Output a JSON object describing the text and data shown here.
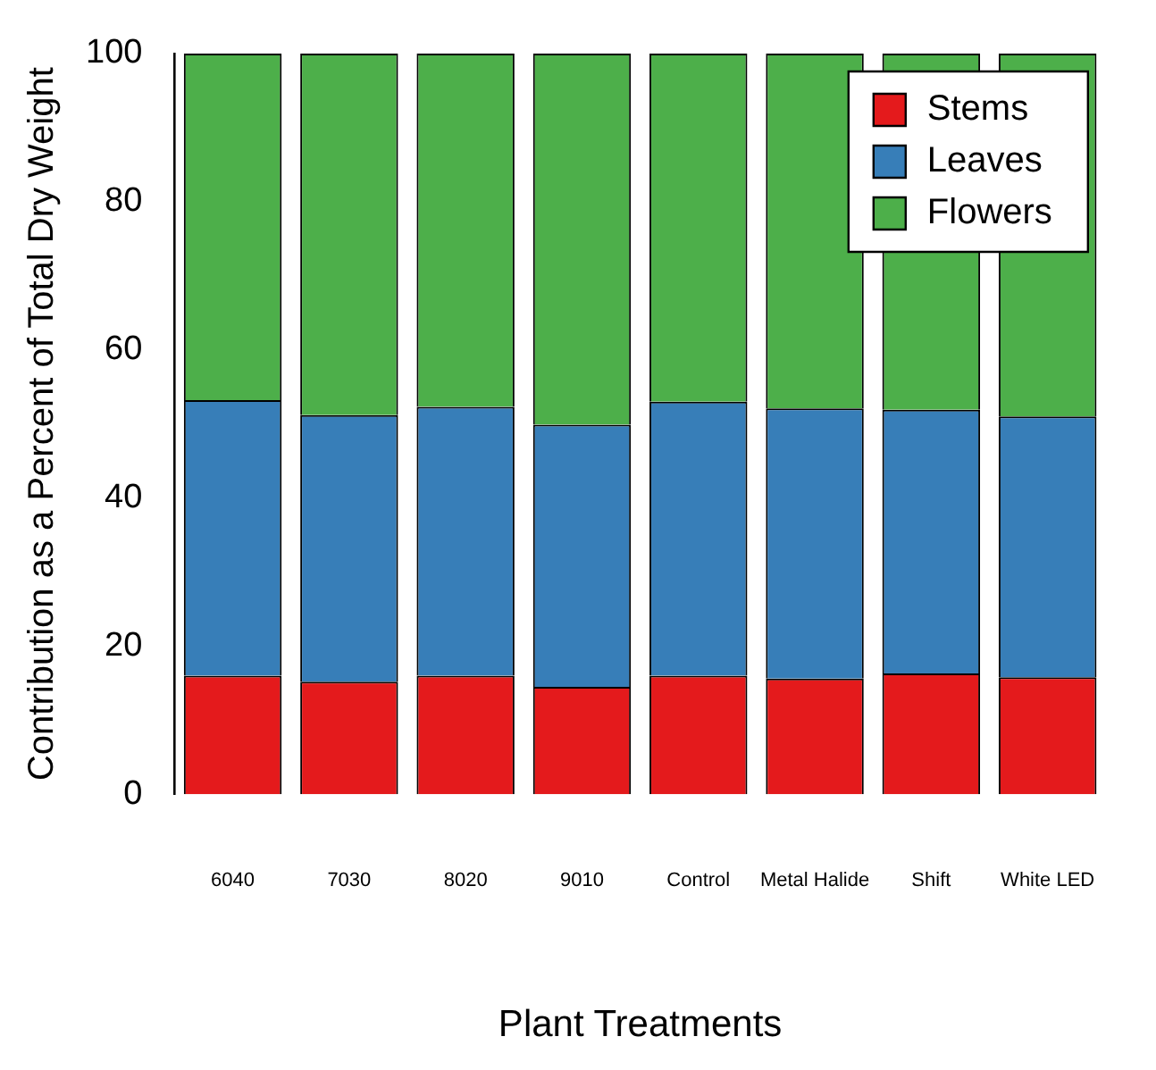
{
  "chart_data": {
    "type": "bar",
    "stacked": true,
    "xlabel": "Plant Treatments",
    "ylabel": "Contribution as a Percent of Total Dry Weight",
    "categories": [
      "6040",
      "7030",
      "8020",
      "9010",
      "Control",
      "Metal Halide",
      "Shift",
      "White LED"
    ],
    "series": [
      {
        "name": "Stems",
        "color": "#e41a1c",
        "values": [
          16.0,
          15.2,
          16.0,
          14.5,
          16.0,
          15.6,
          16.3,
          15.8
        ]
      },
      {
        "name": "Leaves",
        "color": "#377eb8",
        "values": [
          37.2,
          36.0,
          36.3,
          35.4,
          37.0,
          36.5,
          35.6,
          35.2
        ]
      },
      {
        "name": "Flowers",
        "color": "#4daf4a",
        "values": [
          46.8,
          48.8,
          47.7,
          50.1,
          47.0,
          47.9,
          48.1,
          49.0
        ]
      }
    ],
    "ylim": [
      0,
      100
    ],
    "yticks": [
      0,
      20,
      40,
      60,
      80,
      100
    ],
    "grid": false,
    "legend": "top right"
  }
}
